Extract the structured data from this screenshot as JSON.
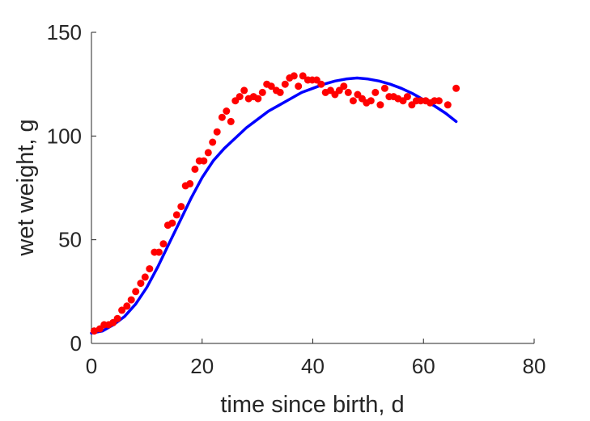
{
  "chart_data": {
    "type": "scatter",
    "title": "",
    "xlabel": "time since birth, d",
    "ylabel": "wet weight, g",
    "xlim": [
      0,
      80
    ],
    "ylim": [
      0,
      150
    ],
    "xticks": [
      0,
      20,
      40,
      60,
      80
    ],
    "yticks": [
      0,
      50,
      100,
      150
    ],
    "grid": false,
    "legend": "none",
    "series": [
      {
        "type": "scatter",
        "color": "#ff0000",
        "x": [
          0.5,
          1.5,
          2.3,
          3.1,
          3.9,
          4.7,
          5.5,
          6.4,
          7.2,
          8.0,
          8.9,
          9.7,
          10.5,
          11.4,
          12.2,
          13.0,
          13.8,
          14.6,
          15.4,
          16.2,
          17.0,
          17.8,
          18.7,
          19.5,
          20.3,
          21.1,
          21.9,
          22.7,
          23.6,
          24.4,
          25.2,
          26.0,
          26.8,
          27.6,
          28.4,
          29.3,
          30.1,
          30.9,
          31.7,
          32.5,
          33.4,
          34.1,
          35.0,
          35.8,
          36.6,
          37.4,
          38.2,
          39.1,
          39.9,
          40.7,
          41.5,
          42.3,
          43.2,
          44.0,
          44.8,
          45.6,
          46.4,
          47.3,
          48.1,
          48.9,
          49.7,
          50.5,
          51.3,
          52.2,
          53.0,
          53.8,
          54.6,
          55.4,
          56.3,
          57.1,
          57.9,
          58.7,
          59.5,
          60.4,
          61.2,
          62.0,
          62.8,
          64.4,
          65.9
        ],
        "y": [
          6,
          7,
          9,
          9,
          10,
          12,
          16,
          18,
          21,
          25,
          29,
          32,
          36,
          44,
          44,
          48,
          57,
          58,
          62,
          66,
          76,
          77,
          84,
          88,
          88,
          92,
          97,
          102,
          109,
          112,
          107,
          117,
          119,
          122,
          118,
          119,
          118,
          121,
          125,
          124,
          122,
          121,
          125,
          128,
          129,
          124,
          129,
          127,
          127,
          127,
          125,
          121,
          122,
          120,
          122,
          124,
          121,
          117,
          120,
          118,
          116,
          117,
          121,
          115,
          123,
          119,
          119,
          118,
          117,
          119,
          115,
          117,
          117,
          117,
          116,
          117,
          117,
          115,
          123
        ]
      },
      {
        "type": "line",
        "color": "#0000ff",
        "x": [
          0,
          2,
          4,
          6,
          8,
          10,
          12,
          14,
          16,
          18,
          20,
          22,
          24,
          26,
          28,
          30,
          32,
          34,
          36,
          38,
          40,
          42,
          44,
          46,
          48,
          50,
          52,
          54,
          56,
          58,
          60,
          62,
          64,
          65.9
        ],
        "y": [
          5,
          6,
          9,
          13,
          19,
          27,
          37,
          48,
          59,
          70,
          80,
          88,
          94,
          99,
          104,
          108,
          112,
          115,
          118,
          121,
          123,
          125,
          126.5,
          127.5,
          128,
          127.5,
          126.5,
          125,
          123,
          120.5,
          117.5,
          114.5,
          111,
          107
        ]
      }
    ]
  }
}
